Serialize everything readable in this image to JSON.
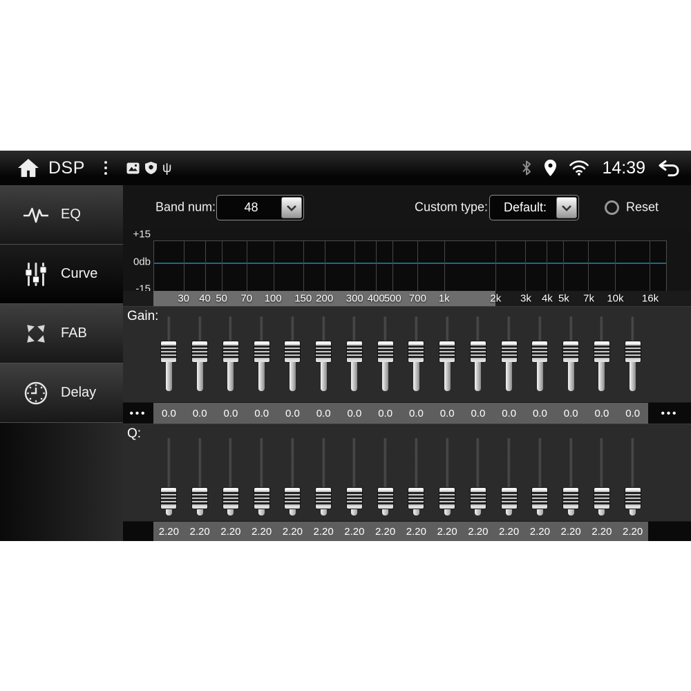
{
  "status_bar": {
    "title": "DSP",
    "time": "14:39"
  },
  "sidebar": {
    "items": [
      {
        "label": "EQ",
        "icon": "waveform-icon",
        "selected": false
      },
      {
        "label": "Curve",
        "icon": "sliders-icon",
        "selected": true
      },
      {
        "label": "FAB",
        "icon": "fab-arrows-icon",
        "selected": false
      },
      {
        "label": "Delay",
        "icon": "clock-icon",
        "selected": false
      }
    ]
  },
  "controls": {
    "band_num_label": "Band num:",
    "band_num_value": "48",
    "custom_type_label": "Custom type:",
    "custom_type_value": "Default:",
    "reset_label": "Reset"
  },
  "eq_graph": {
    "y_axis_labels": [
      "+15",
      "0db",
      "-15"
    ],
    "freq_ticks": [
      {
        "label": "30",
        "hz": 30
      },
      {
        "label": "40",
        "hz": 40
      },
      {
        "label": "50",
        "hz": 50
      },
      {
        "label": "70",
        "hz": 70
      },
      {
        "label": "100",
        "hz": 100
      },
      {
        "label": "150",
        "hz": 150
      },
      {
        "label": "200",
        "hz": 200
      },
      {
        "label": "300",
        "hz": 300
      },
      {
        "label": "400",
        "hz": 400
      },
      {
        "label": "500",
        "hz": 500
      },
      {
        "label": "700",
        "hz": 700
      },
      {
        "label": "1k",
        "hz": 1000
      },
      {
        "label": "2k",
        "hz": 2000
      },
      {
        "label": "3k",
        "hz": 3000
      },
      {
        "label": "4k",
        "hz": 4000
      },
      {
        "label": "5k",
        "hz": 5000
      },
      {
        "label": "7k",
        "hz": 7000
      },
      {
        "label": "10k",
        "hz": 10000
      },
      {
        "label": "16k",
        "hz": 16000
      }
    ],
    "x_range_hz": [
      20,
      20000
    ],
    "curve": {
      "shape": "flat",
      "value_db": 0,
      "color": "#1d6b7d"
    },
    "highlighted_range_end_hz": 2000
  },
  "gain": {
    "label": "Gain:",
    "overflow_left": "•••",
    "overflow_right": "•••",
    "values": [
      "0.0",
      "0.0",
      "0.0",
      "0.0",
      "0.0",
      "0.0",
      "0.0",
      "0.0",
      "0.0",
      "0.0",
      "0.0",
      "0.0",
      "0.0",
      "0.0",
      "0.0",
      "0.0"
    ]
  },
  "q": {
    "label": "Q:",
    "values": [
      "2.20",
      "2.20",
      "2.20",
      "2.20",
      "2.20",
      "2.20",
      "2.20",
      "2.20",
      "2.20",
      "2.20",
      "2.20",
      "2.20",
      "2.20",
      "2.20",
      "2.20",
      "2.20"
    ]
  }
}
